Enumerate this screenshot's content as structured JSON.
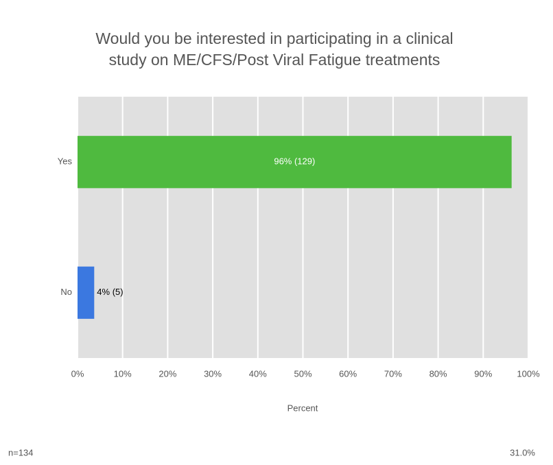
{
  "chart_data": {
    "type": "hbar",
    "title": [
      "Would you be interested in participating in a clinical",
      "study on ME/CFS/Post Viral Fatigue treatments"
    ],
    "categories": [
      "Yes",
      "No"
    ],
    "values": [
      96.3,
      3.7
    ],
    "value_labels": [
      "96% (129)",
      "4% (5)"
    ],
    "colors": [
      "#4fba3f",
      "#3b78e0"
    ],
    "xlabel": "Percent",
    "xlim": [
      0,
      100
    ],
    "xticks": [
      {
        "value": 0,
        "label": "0%"
      },
      {
        "value": 10,
        "label": "10%"
      },
      {
        "value": 20,
        "label": "20%"
      },
      {
        "value": 30,
        "label": "30%"
      },
      {
        "value": 40,
        "label": "40%"
      },
      {
        "value": 50,
        "label": "50%"
      },
      {
        "value": 60,
        "label": "60%"
      },
      {
        "value": 70,
        "label": "70%"
      },
      {
        "value": 80,
        "label": "80%"
      },
      {
        "value": 90,
        "label": "90%"
      },
      {
        "value": 100,
        "label": "100%"
      }
    ],
    "grid": true,
    "footer_left": "n=134",
    "footer_right": "31.0%"
  }
}
